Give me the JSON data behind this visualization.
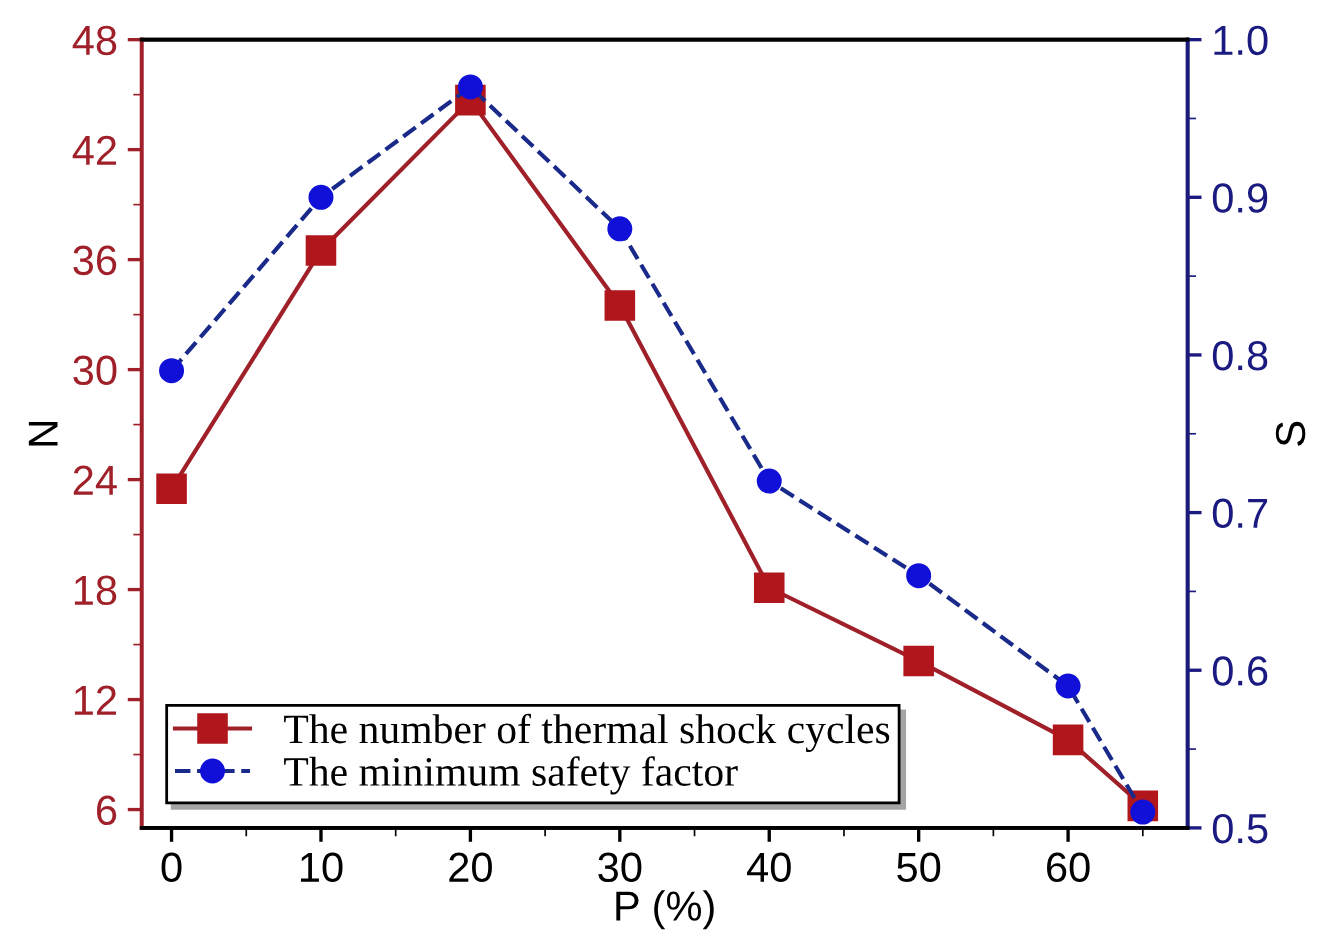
{
  "chart_data": {
    "type": "line",
    "xlabel": "P (%)",
    "ylabel": "N",
    "y2label": "S",
    "x": [
      0,
      10,
      20,
      30,
      40,
      50,
      60,
      65
    ],
    "series": [
      {
        "name": "The number of thermal shock cycles",
        "color": "#b0161c",
        "values": [
          23.5,
          36.5,
          44.7,
          33.5,
          18.1,
          14.1,
          9.8,
          6.2
        ],
        "marker": "square",
        "line_style": "solid"
      },
      {
        "name": "The minimum safety factor",
        "color": "#1010d8",
        "values": [
          0.79,
          0.9,
          0.97,
          0.88,
          0.72,
          0.66,
          0.59,
          0.51
        ],
        "marker": "circle",
        "line_style": "dashed",
        "axis": "y2"
      }
    ],
    "xlim": [
      -2,
      68
    ],
    "xticks": [
      0,
      10,
      20,
      30,
      40,
      50,
      60
    ],
    "ylim": [
      5,
      48
    ],
    "yticks": [
      6,
      12,
      18,
      24,
      30,
      36,
      42,
      48
    ],
    "y2lim": [
      0.5,
      1.0
    ],
    "y2ticks": [
      0.5,
      0.6,
      0.7,
      0.8,
      0.9,
      {
        "value": 1.0,
        "label": "1.0"
      }
    ],
    "grid": false,
    "legend": "bottom left"
  }
}
